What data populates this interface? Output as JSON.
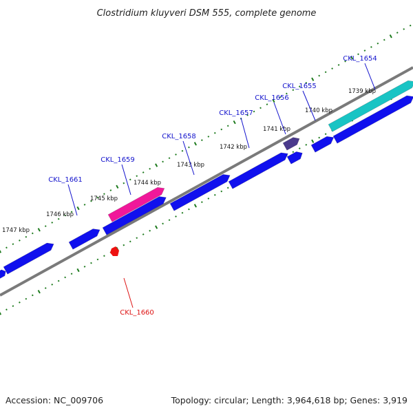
{
  "title": "Clostridium kluyveri DSM 555, complete genome",
  "footer": {
    "accession": "Accession: NC_009706",
    "summary": "Topology: circular; Length: 3,964,618 bp; Genes: 3,919"
  },
  "colors": {
    "backbone": "#7a7a7a",
    "tick": "#1d7a1d",
    "gene_forward": "#1010ee",
    "gene_highlight_cyan": "#19c4c4",
    "gene_highlight_magenta": "#f0189a",
    "gene_small_purple": "#4a3a8c",
    "gene_red": "#ee1111",
    "label_blue": "#1111cc",
    "label_red": "#dd1111"
  },
  "scale_labels": [
    "1739 kbp",
    "1740 kbp",
    "1741 kbp",
    "1742 kbp",
    "1743 kbp",
    "1744 kbp",
    "1745 kbp",
    "1746 kbp",
    "1747 kbp"
  ],
  "genes": [
    {
      "id": "CKL_1654",
      "color": "label_blue"
    },
    {
      "id": "CKL_1655",
      "color": "label_blue"
    },
    {
      "id": "CKL_1656",
      "color": "label_blue"
    },
    {
      "id": "CKL_1657",
      "color": "label_blue"
    },
    {
      "id": "CKL_1658",
      "color": "label_blue"
    },
    {
      "id": "CKL_1659",
      "color": "label_blue"
    },
    {
      "id": "CKL_1660",
      "color": "label_red"
    },
    {
      "id": "CKL_1661",
      "color": "label_blue"
    }
  ]
}
